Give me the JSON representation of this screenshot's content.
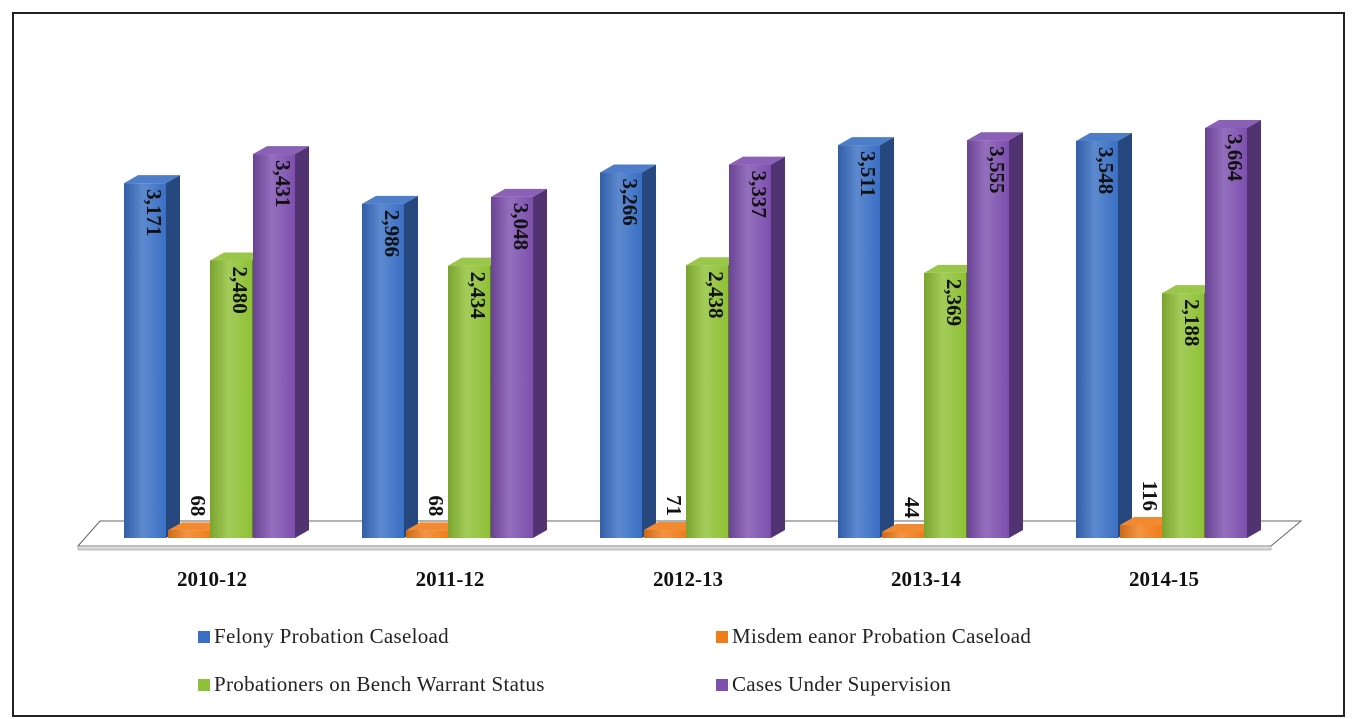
{
  "chart_data": {
    "type": "bar",
    "title": "",
    "xlabel": "",
    "ylabel": "",
    "ylim": [
      0,
      4000
    ],
    "grid": false,
    "legend_position": "bottom",
    "categories": [
      "2010-12",
      "2011-12",
      "2012-13",
      "2013-14",
      "2014-15"
    ],
    "series": [
      {
        "name": "Felony Probation Caseload",
        "color": "#3a6fc4",
        "values": [
          3171,
          2986,
          3266,
          3511,
          3548
        ],
        "labels": [
          "3,171",
          "2,986",
          "3,266",
          "3,511",
          "3,548"
        ]
      },
      {
        "name": "Misdem eanor Probation Caseload",
        "color": "#f07d1a",
        "values": [
          68,
          68,
          71,
          44,
          116
        ],
        "labels": [
          "68",
          "68",
          "71",
          "44",
          "116"
        ]
      },
      {
        "name": "Probationers on Bench Warrant Status",
        "color": "#8fc136",
        "values": [
          2480,
          2434,
          2438,
          2369,
          2188
        ],
        "labels": [
          "2,480",
          "2,434",
          "2,438",
          "2,369",
          "2,188"
        ]
      },
      {
        "name": "Cases Under Supervision",
        "color": "#7d4fae",
        "values": [
          3431,
          3048,
          3337,
          3555,
          3664
        ],
        "labels": [
          "3,431",
          "3,048",
          "3,337",
          "3,555",
          "3,664"
        ]
      }
    ]
  }
}
